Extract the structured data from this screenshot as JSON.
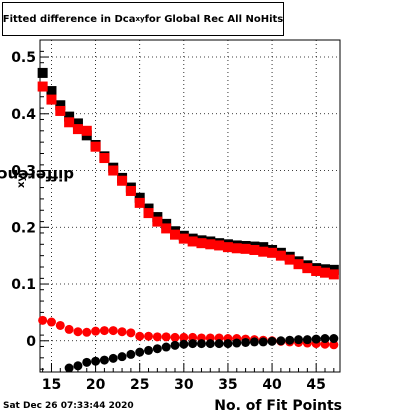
{
  "title": {
    "prefix": "Fitted difference in Dca",
    "sub": "xy",
    "suffix": " for Global Rec All NoHits"
  },
  "ylabel": {
    "main": "difference in Dca",
    "sub": "xy"
  },
  "xlabel": "No. of Fit Points",
  "timestamp": "Sat Dec 26 07:33:44 2020",
  "chart_data": {
    "type": "scatter",
    "xlim": [
      13.7,
      47.7
    ],
    "ylim": [
      -0.055,
      0.53
    ],
    "xticks": [
      15,
      20,
      25,
      30,
      35,
      40,
      45
    ],
    "yticks": [
      0,
      0.1,
      0.2,
      0.3,
      0.4,
      0.5
    ],
    "ytick_labels": [
      "0",
      "0.1",
      "0.2",
      "0.3",
      "0.4",
      "0.5"
    ],
    "grid": true,
    "colors": {
      "black": "#000000",
      "red": "#ff0000"
    },
    "series": [
      {
        "marker": "square",
        "color": "black",
        "x": [
          14,
          15,
          16,
          17,
          18,
          19,
          20,
          21,
          22,
          23,
          24,
          25,
          26,
          27,
          28,
          29,
          30,
          31,
          32,
          33,
          34,
          35,
          36,
          37,
          38,
          39,
          40,
          41,
          42,
          43,
          44,
          45,
          46,
          47
        ],
        "y": [
          0.472,
          0.44,
          0.415,
          0.395,
          0.383,
          0.362,
          0.345,
          0.325,
          0.305,
          0.287,
          0.27,
          0.252,
          0.233,
          0.218,
          0.206,
          0.193,
          0.185,
          0.18,
          0.177,
          0.175,
          0.172,
          0.17,
          0.168,
          0.167,
          0.166,
          0.165,
          0.16,
          0.155,
          0.148,
          0.14,
          0.133,
          0.128,
          0.126,
          0.125
        ]
      },
      {
        "marker": "square",
        "color": "red",
        "x": [
          14,
          15,
          16,
          17,
          18,
          19,
          20,
          21,
          22,
          23,
          24,
          25,
          26,
          27,
          28,
          29,
          30,
          31,
          32,
          33,
          34,
          35,
          36,
          37,
          38,
          39,
          40,
          41,
          42,
          43,
          44,
          45,
          46,
          47
        ],
        "y": [
          0.448,
          0.425,
          0.405,
          0.385,
          0.373,
          0.37,
          0.342,
          0.322,
          0.3,
          0.282,
          0.264,
          0.243,
          0.225,
          0.21,
          0.198,
          0.187,
          0.18,
          0.175,
          0.172,
          0.17,
          0.168,
          0.165,
          0.163,
          0.162,
          0.16,
          0.157,
          0.155,
          0.15,
          0.143,
          0.135,
          0.128,
          0.123,
          0.12,
          0.117
        ]
      },
      {
        "marker": "circle",
        "color": "red",
        "x": [
          14,
          15,
          16,
          17,
          18,
          19,
          20,
          21,
          22,
          23,
          24,
          25,
          26,
          27,
          28,
          29,
          30,
          31,
          32,
          33,
          34,
          35,
          36,
          37,
          38,
          39,
          40,
          41,
          42,
          43,
          44,
          45,
          46,
          47
        ],
        "y": [
          0.036,
          0.033,
          0.027,
          0.02,
          0.016,
          0.015,
          0.017,
          0.018,
          0.018,
          0.016,
          0.014,
          0.008,
          0.008,
          0.007,
          0.007,
          0.006,
          0.006,
          0.006,
          0.005,
          0.005,
          0.005,
          0.004,
          0.004,
          0.003,
          0.002,
          0.001,
          0.0,
          -0.001,
          -0.002,
          -0.003,
          -0.004,
          -0.005,
          -0.006,
          -0.007
        ]
      },
      {
        "marker": "circle",
        "color": "black",
        "x": [
          17,
          18,
          19,
          20,
          21,
          22,
          23,
          24,
          25,
          26,
          27,
          28,
          29,
          30,
          31,
          32,
          33,
          34,
          35,
          36,
          37,
          38,
          39,
          40,
          41,
          42,
          43,
          44,
          45,
          46,
          47
        ],
        "y": [
          -0.048,
          -0.044,
          -0.038,
          -0.036,
          -0.034,
          -0.031,
          -0.028,
          -0.024,
          -0.02,
          -0.017,
          -0.014,
          -0.011,
          -0.008,
          -0.006,
          -0.005,
          -0.005,
          -0.005,
          -0.005,
          -0.005,
          -0.004,
          -0.003,
          -0.002,
          -0.002,
          -0.001,
          0.0,
          0.001,
          0.002,
          0.002,
          0.003,
          0.004,
          0.004
        ]
      }
    ]
  }
}
